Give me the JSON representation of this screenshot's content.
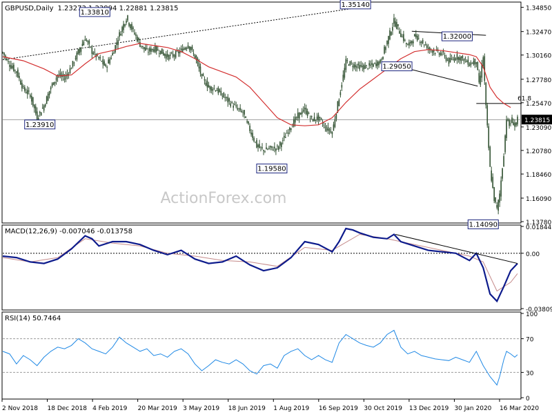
{
  "header": {
    "symbol": "GBPUSD,Daily",
    "ohlc": "1.23273 1.23894 1.22881 1.23815"
  },
  "watermark": "ActionForex.com",
  "chart_data": [
    {
      "type": "candlestick",
      "panel": "price",
      "title": "GBPUSD,Daily",
      "ylim": [
        1.1378,
        1.353
      ],
      "y_ticks": [
        "1.34850",
        "1.32470",
        "1.30160",
        "1.27780",
        "1.25470",
        "1.23090",
        "1.20780",
        "1.18460",
        "1.16090",
        "1.13780"
      ],
      "last_price": "1.23815",
      "close_path": [
        [
          0,
          1.304
        ],
        [
          5,
          1.292
        ],
        [
          10,
          1.285
        ],
        [
          15,
          1.268
        ],
        [
          20,
          1.262
        ],
        [
          25,
          1.24
        ],
        [
          30,
          1.252
        ],
        [
          35,
          1.27
        ],
        [
          40,
          1.282
        ],
        [
          45,
          1.279
        ],
        [
          50,
          1.29
        ],
        [
          55,
          1.305
        ],
        [
          60,
          1.318
        ],
        [
          65,
          1.305
        ],
        [
          70,
          1.298
        ],
        [
          75,
          1.29
        ],
        [
          80,
          1.303
        ],
        [
          85,
          1.322
        ],
        [
          90,
          1.338
        ],
        [
          95,
          1.325
        ],
        [
          100,
          1.312
        ],
        [
          105,
          1.305
        ],
        [
          110,
          1.308
        ],
        [
          115,
          1.305
        ],
        [
          120,
          1.3
        ],
        [
          125,
          1.302
        ],
        [
          130,
          1.306
        ],
        [
          135,
          1.312
        ],
        [
          140,
          1.3
        ],
        [
          145,
          1.28
        ],
        [
          150,
          1.27
        ],
        [
          155,
          1.268
        ],
        [
          160,
          1.262
        ],
        [
          165,
          1.255
        ],
        [
          170,
          1.25
        ],
        [
          175,
          1.245
        ],
        [
          180,
          1.228
        ],
        [
          185,
          1.212
        ],
        [
          190,
          1.208
        ],
        [
          195,
          1.21
        ],
        [
          200,
          1.21
        ],
        [
          205,
          1.22
        ],
        [
          210,
          1.232
        ],
        [
          215,
          1.242
        ],
        [
          220,
          1.248
        ],
        [
          225,
          1.238
        ],
        [
          230,
          1.24
        ],
        [
          235,
          1.23
        ],
        [
          240,
          1.226
        ],
        [
          245,
          1.26
        ],
        [
          250,
          1.295
        ],
        [
          255,
          1.292
        ],
        [
          260,
          1.29
        ],
        [
          265,
          1.29
        ],
        [
          270,
          1.292
        ],
        [
          275,
          1.295
        ],
        [
          280,
          1.315
        ],
        [
          285,
          1.335
        ],
        [
          290,
          1.322
        ],
        [
          295,
          1.31
        ],
        [
          300,
          1.32
        ],
        [
          305,
          1.315
        ],
        [
          310,
          1.308
        ],
        [
          315,
          1.305
        ],
        [
          320,
          1.303
        ],
        [
          325,
          1.295
        ],
        [
          330,
          1.3
        ],
        [
          335,
          1.298
        ],
        [
          340,
          1.293
        ],
        [
          345,
          1.296
        ],
        [
          347,
          1.272
        ],
        [
          350,
          1.3
        ],
        [
          352,
          1.25
        ],
        [
          355,
          1.19
        ],
        [
          358,
          1.16
        ],
        [
          360,
          1.15
        ],
        [
          362,
          1.165
        ],
        [
          365,
          1.205
        ],
        [
          367,
          1.24
        ],
        [
          369,
          1.232
        ],
        [
          371,
          1.238
        ],
        [
          373,
          1.232
        ],
        [
          375,
          1.238
        ]
      ],
      "ma": [
        [
          0,
          1.3
        ],
        [
          15,
          1.296
        ],
        [
          30,
          1.288
        ],
        [
          40,
          1.281
        ],
        [
          50,
          1.282
        ],
        [
          60,
          1.293
        ],
        [
          70,
          1.303
        ],
        [
          80,
          1.306
        ],
        [
          90,
          1.31
        ],
        [
          100,
          1.313
        ],
        [
          110,
          1.311
        ],
        [
          120,
          1.309
        ],
        [
          130,
          1.305
        ],
        [
          140,
          1.298
        ],
        [
          150,
          1.29
        ],
        [
          160,
          1.285
        ],
        [
          170,
          1.28
        ],
        [
          180,
          1.27
        ],
        [
          190,
          1.255
        ],
        [
          200,
          1.24
        ],
        [
          210,
          1.233
        ],
        [
          220,
          1.232
        ],
        [
          230,
          1.233
        ],
        [
          240,
          1.24
        ],
        [
          250,
          1.255
        ],
        [
          260,
          1.268
        ],
        [
          270,
          1.278
        ],
        [
          280,
          1.288
        ],
        [
          290,
          1.298
        ],
        [
          300,
          1.305
        ],
        [
          310,
          1.307
        ],
        [
          320,
          1.306
        ],
        [
          330,
          1.304
        ],
        [
          340,
          1.302
        ],
        [
          345,
          1.3
        ],
        [
          350,
          1.29
        ],
        [
          355,
          1.27
        ],
        [
          360,
          1.26
        ],
        [
          365,
          1.254
        ],
        [
          370,
          1.25
        ]
      ],
      "annotations": [
        {
          "label": "1.33810",
          "x": 67,
          "y": 1.3381
        },
        {
          "label": "1.35140",
          "x": 268,
          "y": 1.3514
        },
        {
          "label": "1.32000",
          "x": 330,
          "y": 1.32
        },
        {
          "label": "1.29050",
          "x": 276,
          "y": 1.2905
        },
        {
          "label": "1.23910",
          "x": 27,
          "y": 1.2391
        },
        {
          "label": "1.19580",
          "x": 196,
          "y": 1.1958
        },
        {
          "label": "1.14090",
          "x": 350,
          "y": 1.1409
        },
        {
          "label": "61.8",
          "x": 370,
          "y": 1.2549
        }
      ],
      "x_labels": [
        "2 Nov 2018",
        "18 Dec 2018",
        "4 Feb 2019",
        "20 Mar 2019",
        "3 May 2019",
        "18 Jun 2019",
        "1 Aug 2019",
        "16 Sep 2019",
        "30 Oct 2019",
        "13 Dec 2019",
        "30 Jan 2020",
        "16 Mar 2020"
      ]
    },
    {
      "type": "line",
      "panel": "macd",
      "title": "MACD(12,26,9) -0.007046 -0.013758",
      "ylim": [
        -0.03809,
        0.01844
      ],
      "y_ticks": [
        "0.018442",
        "0.00",
        "-0.038095"
      ],
      "macd": [
        [
          0,
          -0.002
        ],
        [
          10,
          -0.003
        ],
        [
          20,
          -0.006
        ],
        [
          30,
          -0.007
        ],
        [
          40,
          -0.004
        ],
        [
          50,
          0.003
        ],
        [
          60,
          0.012
        ],
        [
          65,
          0.01
        ],
        [
          70,
          0.005
        ],
        [
          80,
          0.008
        ],
        [
          90,
          0.008
        ],
        [
          100,
          0.006
        ],
        [
          110,
          0.002
        ],
        [
          120,
          -0.001
        ],
        [
          130,
          0.002
        ],
        [
          140,
          -0.004
        ],
        [
          150,
          -0.007
        ],
        [
          160,
          -0.006
        ],
        [
          170,
          -0.002
        ],
        [
          180,
          -0.008
        ],
        [
          190,
          -0.012
        ],
        [
          200,
          -0.01
        ],
        [
          210,
          -0.003
        ],
        [
          220,
          0.008
        ],
        [
          230,
          0.006
        ],
        [
          240,
          0.001
        ],
        [
          245,
          0.008
        ],
        [
          250,
          0.017
        ],
        [
          255,
          0.016
        ],
        [
          260,
          0.014
        ],
        [
          270,
          0.011
        ],
        [
          280,
          0.01
        ],
        [
          285,
          0.013
        ],
        [
          290,
          0.008
        ],
        [
          300,
          0.005
        ],
        [
          310,
          0.002
        ],
        [
          320,
          0.001
        ],
        [
          330,
          0.0
        ],
        [
          340,
          -0.005
        ],
        [
          345,
          0.0
        ],
        [
          350,
          -0.01
        ],
        [
          355,
          -0.028
        ],
        [
          360,
          -0.033
        ],
        [
          365,
          -0.023
        ],
        [
          370,
          -0.012
        ],
        [
          375,
          -0.007
        ]
      ],
      "signal": [
        [
          0,
          -0.003
        ],
        [
          20,
          -0.006
        ],
        [
          40,
          -0.003
        ],
        [
          60,
          0.01
        ],
        [
          80,
          0.007
        ],
        [
          100,
          0.005
        ],
        [
          120,
          0.0
        ],
        [
          140,
          -0.002
        ],
        [
          160,
          -0.005
        ],
        [
          180,
          -0.006
        ],
        [
          200,
          -0.009
        ],
        [
          220,
          0.004
        ],
        [
          240,
          0.002
        ],
        [
          260,
          0.013
        ],
        [
          280,
          0.01
        ],
        [
          300,
          0.006
        ],
        [
          320,
          0.002
        ],
        [
          340,
          -0.002
        ],
        [
          350,
          -0.006
        ],
        [
          360,
          -0.026
        ],
        [
          370,
          -0.02
        ],
        [
          375,
          -0.014
        ]
      ],
      "trendline": [
        [
          286,
          0.013
        ],
        [
          375,
          -0.007
        ]
      ]
    },
    {
      "type": "line",
      "panel": "rsi",
      "title": "RSI(14) 50.7464",
      "ylim": [
        0,
        100
      ],
      "y_ticks": [
        "100",
        "70",
        "30",
        "0"
      ],
      "rsi": [
        [
          0,
          55
        ],
        [
          5,
          52
        ],
        [
          10,
          40
        ],
        [
          15,
          50
        ],
        [
          20,
          45
        ],
        [
          25,
          38
        ],
        [
          30,
          48
        ],
        [
          35,
          55
        ],
        [
          40,
          60
        ],
        [
          45,
          58
        ],
        [
          50,
          62
        ],
        [
          55,
          70
        ],
        [
          60,
          65
        ],
        [
          65,
          58
        ],
        [
          70,
          55
        ],
        [
          75,
          52
        ],
        [
          80,
          60
        ],
        [
          85,
          72
        ],
        [
          90,
          65
        ],
        [
          95,
          60
        ],
        [
          100,
          55
        ],
        [
          105,
          58
        ],
        [
          110,
          50
        ],
        [
          115,
          52
        ],
        [
          120,
          48
        ],
        [
          125,
          55
        ],
        [
          130,
          58
        ],
        [
          135,
          52
        ],
        [
          140,
          40
        ],
        [
          145,
          32
        ],
        [
          150,
          38
        ],
        [
          155,
          45
        ],
        [
          160,
          42
        ],
        [
          165,
          40
        ],
        [
          170,
          45
        ],
        [
          175,
          40
        ],
        [
          180,
          32
        ],
        [
          185,
          28
        ],
        [
          190,
          38
        ],
        [
          195,
          40
        ],
        [
          200,
          35
        ],
        [
          205,
          50
        ],
        [
          210,
          55
        ],
        [
          215,
          58
        ],
        [
          220,
          50
        ],
        [
          225,
          45
        ],
        [
          230,
          50
        ],
        [
          235,
          45
        ],
        [
          240,
          42
        ],
        [
          245,
          65
        ],
        [
          250,
          75
        ],
        [
          255,
          70
        ],
        [
          260,
          65
        ],
        [
          265,
          62
        ],
        [
          270,
          60
        ],
        [
          275,
          65
        ],
        [
          280,
          75
        ],
        [
          285,
          80
        ],
        [
          290,
          60
        ],
        [
          295,
          52
        ],
        [
          300,
          55
        ],
        [
          305,
          50
        ],
        [
          310,
          48
        ],
        [
          315,
          46
        ],
        [
          320,
          45
        ],
        [
          325,
          44
        ],
        [
          330,
          48
        ],
        [
          335,
          45
        ],
        [
          340,
          42
        ],
        [
          345,
          55
        ],
        [
          350,
          38
        ],
        [
          355,
          25
        ],
        [
          360,
          15
        ],
        [
          362,
          25
        ],
        [
          365,
          45
        ],
        [
          367,
          55
        ],
        [
          370,
          52
        ],
        [
          373,
          48
        ],
        [
          375,
          51
        ]
      ]
    }
  ]
}
